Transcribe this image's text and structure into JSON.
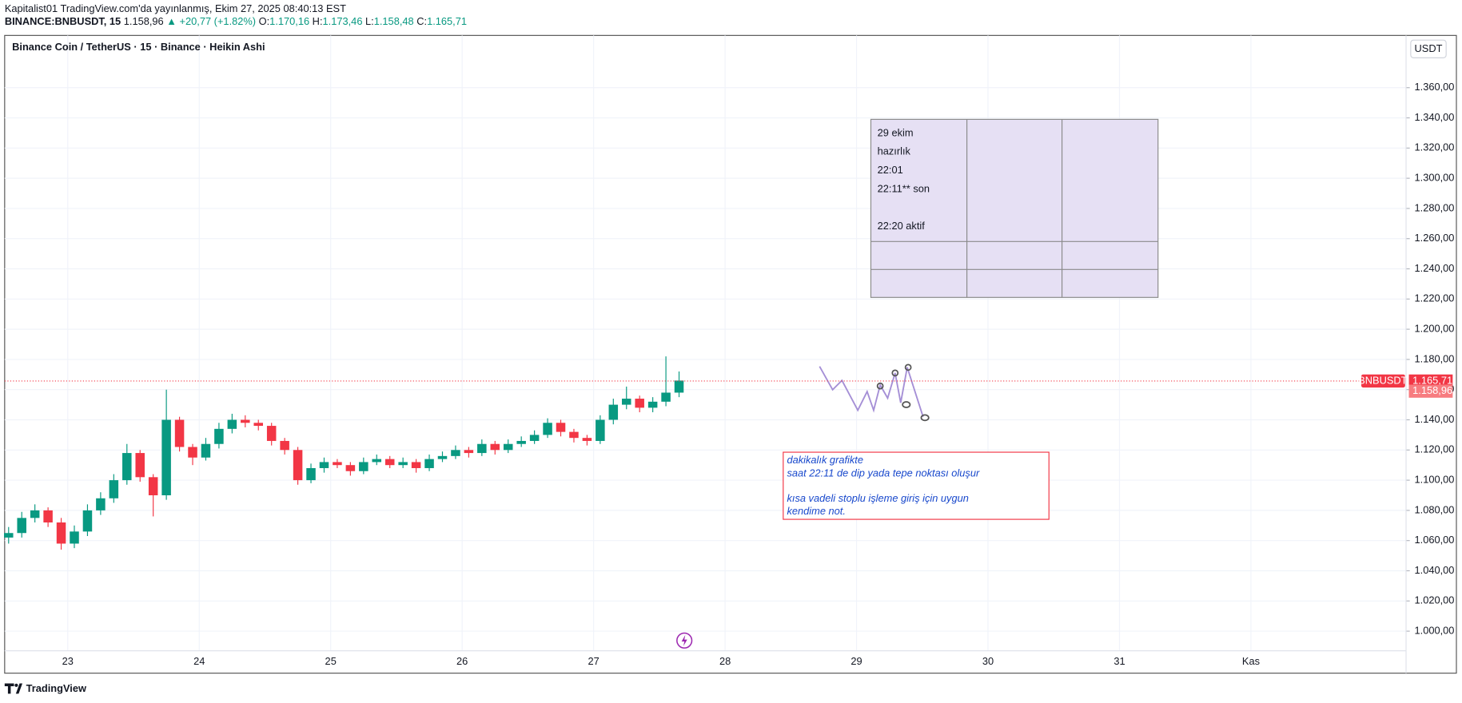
{
  "header": {
    "publisher": "Kapitalist01 TradingView.com'da yayınlanmış, Ekim 27, 2025 08:40:13 EST",
    "symbol": "BINANCE:BNBUSDT, 15",
    "price": "1.158,96",
    "change": "▲ +20,77 (+1.82%)",
    "ohlc_labels": [
      "O:",
      "H:",
      "L:",
      "C:"
    ],
    "ohlc_values": [
      "1.170,16",
      "1.173,46",
      "1.158,48",
      "1.165,71"
    ]
  },
  "brand": "TradingView",
  "chart_data": {
    "type": "candlestick",
    "title": "Binance Coin / TetherUS · 15 · Binance · Heikin Ashi",
    "currency": "USDT",
    "x": [
      22.55,
      22.65,
      22.75,
      22.85,
      22.95,
      23.05,
      23.15,
      23.25,
      23.35,
      23.45,
      23.55,
      23.65,
      23.75,
      23.85,
      23.95,
      24.05,
      24.15,
      24.25,
      24.35,
      24.45,
      24.55,
      24.65,
      24.75,
      24.85,
      24.95,
      25.05,
      25.15,
      25.25,
      25.35,
      25.45,
      25.55,
      25.65,
      25.75,
      25.85,
      25.95,
      26.05,
      26.15,
      26.25,
      26.35,
      26.45,
      26.55,
      26.65,
      26.75,
      26.85,
      26.95,
      27.05,
      27.15,
      27.25,
      27.35,
      27.45,
      27.55,
      27.65
    ],
    "open": [
      1062,
      1065,
      1075,
      1080,
      1072,
      1058,
      1066,
      1080,
      1088,
      1100,
      1118,
      1102,
      1090,
      1140,
      1122,
      1115,
      1124,
      1134,
      1140,
      1138,
      1136,
      1126,
      1120,
      1100,
      1108,
      1112,
      1110,
      1106,
      1112,
      1114,
      1110,
      1112,
      1108,
      1114,
      1116,
      1120,
      1118,
      1124,
      1120,
      1124,
      1126,
      1130,
      1138,
      1132,
      1128,
      1126,
      1140,
      1150,
      1154,
      1148,
      1152,
      1158
    ],
    "high": [
      1069,
      1079,
      1084,
      1082,
      1075,
      1070,
      1084,
      1092,
      1104,
      1124,
      1120,
      1104,
      1160,
      1142,
      1124,
      1128,
      1138,
      1144,
      1143,
      1140,
      1138,
      1128,
      1122,
      1111,
      1115,
      1114,
      1112,
      1115,
      1117,
      1116,
      1115,
      1114,
      1117,
      1119,
      1123,
      1122,
      1127,
      1126,
      1127,
      1129,
      1133,
      1141,
      1140,
      1134,
      1130,
      1143,
      1154,
      1162,
      1156,
      1155,
      1182,
      1172
    ],
    "low": [
      1058,
      1062,
      1072,
      1069,
      1054,
      1055,
      1063,
      1077,
      1085,
      1097,
      1099,
      1076,
      1087,
      1119,
      1110,
      1113,
      1121,
      1131,
      1135,
      1133,
      1123,
      1117,
      1097,
      1098,
      1105,
      1108,
      1103,
      1104,
      1110,
      1108,
      1108,
      1105,
      1106,
      1112,
      1114,
      1115,
      1116,
      1117,
      1118,
      1122,
      1124,
      1128,
      1129,
      1125,
      1123,
      1124,
      1137,
      1147,
      1145,
      1145,
      1149,
      1155
    ],
    "close": [
      1065,
      1075,
      1080,
      1072,
      1058,
      1066,
      1080,
      1088,
      1100,
      1118,
      1102,
      1090,
      1140,
      1122,
      1115,
      1124,
      1134,
      1140,
      1138,
      1136,
      1126,
      1120,
      1100,
      1108,
      1112,
      1110,
      1106,
      1112,
      1114,
      1110,
      1112,
      1108,
      1114,
      1116,
      1120,
      1118,
      1124,
      1120,
      1124,
      1126,
      1130,
      1138,
      1132,
      1128,
      1126,
      1140,
      1150,
      1154,
      1148,
      1152,
      1158,
      1166
    ],
    "up_color": "#089981",
    "down_color": "#f23645",
    "xlim": [
      22.52,
      33.18
    ],
    "xticks": [
      23,
      24,
      25,
      26,
      27,
      28,
      29,
      30,
      31,
      {
        "value": 32,
        "label": "Kas"
      }
    ],
    "ylim": [
      987,
      1394.6
    ],
    "yticks": [
      {
        "value": 1000,
        "label": "1.000,00"
      },
      {
        "value": 1020,
        "label": "1.020,00"
      },
      {
        "value": 1040,
        "label": "1.040,00"
      },
      {
        "value": 1060,
        "label": "1.060,00"
      },
      {
        "value": 1080,
        "label": "1.080,00"
      },
      {
        "value": 1100,
        "label": "1.100,00"
      },
      {
        "value": 1120,
        "label": "1.120,00"
      },
      {
        "value": 1140,
        "label": "1.140,00"
      },
      {
        "value": 1160,
        "label": "1.160,00"
      },
      {
        "value": 1180,
        "label": "1.180,00"
      },
      {
        "value": 1200,
        "label": "1.200,00"
      },
      {
        "value": 1220,
        "label": "1.220,00"
      },
      {
        "value": 1240,
        "label": "1.240,00"
      },
      {
        "value": 1260,
        "label": "1.260,00"
      },
      {
        "value": 1280,
        "label": "1.280,00"
      },
      {
        "value": 1300,
        "label": "1.300,00"
      },
      {
        "value": 1320,
        "label": "1.320,00"
      },
      {
        "value": 1340,
        "label": "1.340,00"
      },
      {
        "value": 1360,
        "label": "1.360,00"
      }
    ],
    "grid": true,
    "symbol_label": "BNBUSDT",
    "last_price": {
      "value": 1165.71,
      "label": "1.165,71"
    },
    "price_label": {
      "value": 1158.96,
      "label": "1.158,96"
    },
    "table_note": [
      "29 ekim",
      "hazırlık",
      "22:01",
      "22:11** son",
      "22:20 aktif"
    ],
    "text_note": [
      "dakikalık grafikte",
      "saat 22:11 de dip yada tepe noktası oluşur",
      "kısa vadeli stoplu işleme giriş için uygun",
      "kendime not."
    ]
  }
}
